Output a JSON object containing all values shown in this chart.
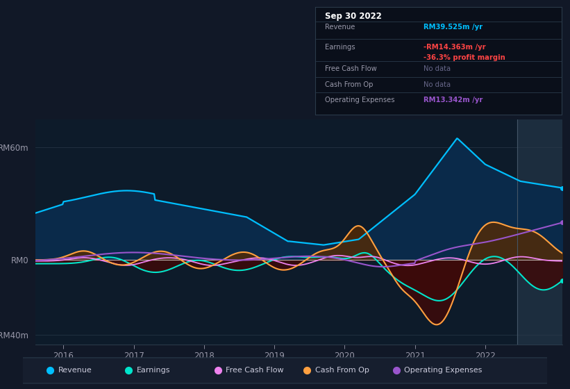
{
  "bg_color": "#111827",
  "chart_bg": "#0d1b2a",
  "title": "Sep 30 2022",
  "ylim": [
    -45,
    75
  ],
  "xlim": [
    2015.6,
    2023.1
  ],
  "ytick_labels": [
    "-RM40m",
    "RM0",
    "RM60m"
  ],
  "ytick_vals": [
    -40,
    0,
    60
  ],
  "xticks": [
    2016,
    2017,
    2018,
    2019,
    2020,
    2021,
    2022
  ],
  "revenue_color": "#00bfff",
  "earnings_color": "#00e5cc",
  "fcf_color": "#ee82ee",
  "cashfromop_color": "#ffa040",
  "opex_color": "#9955cc",
  "tooltip": {
    "date": "Sep 30 2022",
    "revenue_val": "RM39.525m /yr",
    "revenue_color": "#00bfff",
    "earnings_val": "-RM14.363m /yr",
    "earnings_color": "#ff4444",
    "profit_margin": "-36.3% profit margin",
    "profit_margin_color": "#ff4444",
    "fcf_val": "No data",
    "cashop_val": "No data",
    "opex_val": "RM13.342m /yr",
    "opex_color": "#9955cc",
    "nodata_color": "#666688"
  },
  "legend_items": [
    {
      "label": "Revenue",
      "color": "#00bfff"
    },
    {
      "label": "Earnings",
      "color": "#00e5cc"
    },
    {
      "label": "Free Cash Flow",
      "color": "#ee82ee"
    },
    {
      "label": "Cash From Op",
      "color": "#ffa040"
    },
    {
      "label": "Operating Expenses",
      "color": "#9955cc"
    }
  ]
}
